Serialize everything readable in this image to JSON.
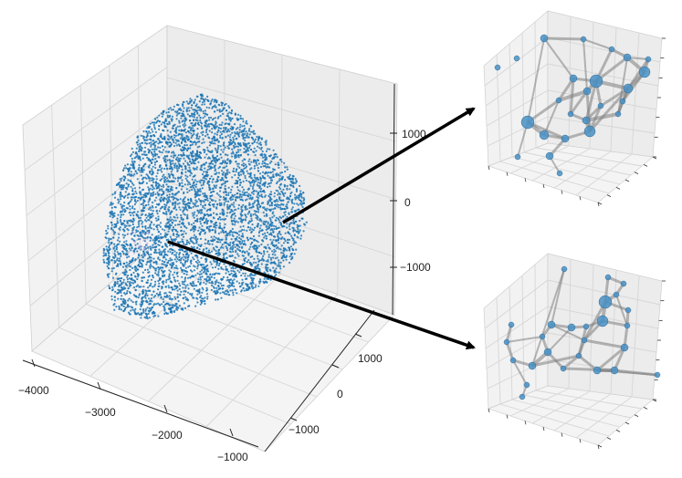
{
  "chart_data": [
    {
      "type": "scatter",
      "title": "",
      "projection": "3d",
      "marker_color": "#1f77b4",
      "point_count_approx": 20000,
      "x_axis": {
        "ticks": [
          -4000,
          -3000,
          -2000,
          -1000
        ],
        "tick_labels": [
          "−4000",
          "−3000",
          "−2000",
          "−1000"
        ]
      },
      "y_axis": {
        "ticks": [
          -1000,
          0,
          1000
        ],
        "tick_labels": [
          "−1000",
          "0",
          "1000"
        ]
      },
      "z_axis": {
        "ticks": [
          -1000,
          0,
          1000
        ],
        "tick_labels": [
          "−1000",
          "0",
          "1000"
        ]
      },
      "grid": true
    },
    {
      "type": "network3d",
      "node_color": "#4a90c4",
      "edge_color": "#808080",
      "tick_labels": "none",
      "grid": true
    },
    {
      "type": "network3d",
      "node_color": "#4a90c4",
      "edge_color": "#808080",
      "tick_labels": "none",
      "grid": true
    }
  ],
  "arrows": [
    {
      "from": "upper-right of point cloud",
      "to": "top-right network plot",
      "color": "#000000"
    },
    {
      "from": "left-center of point cloud",
      "to": "bottom-right network plot",
      "color": "#000000"
    }
  ],
  "labels": {
    "x": [
      "−4000",
      "−3000",
      "−2000",
      "−1000"
    ],
    "y": [
      "−1000",
      "0",
      "1000"
    ],
    "z": [
      "1000",
      "0",
      "−1000"
    ]
  }
}
